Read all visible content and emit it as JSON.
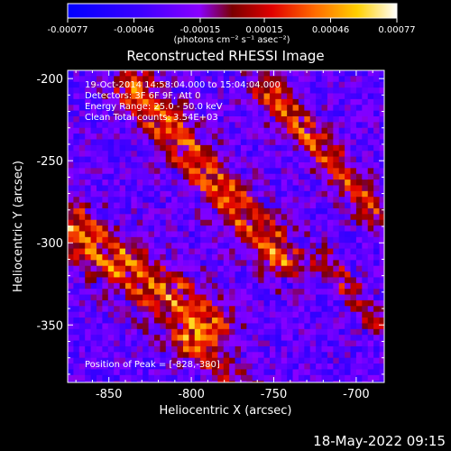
{
  "footer": {
    "timestamp": "18-May-2022 09:15"
  },
  "colors": {
    "background": "#000000",
    "text": "#ffffff",
    "colormap": [
      "#0000ff",
      "#3c00ff",
      "#7a00ff",
      "#9a00ff",
      "#b20000",
      "#ff3300",
      "#ff7a00",
      "#ffc000",
      "#fff200",
      "#ffffff"
    ]
  },
  "chart_data": {
    "type": "heatmap",
    "title": "Reconstructed RHESSI Image",
    "xlabel": "Heliocentric X (arcsec)",
    "ylabel": "Heliocentric Y (arcsec)",
    "xlim": [
      -875,
      -683
    ],
    "ylim": [
      -385,
      -195
    ],
    "x_ticks": [
      -850,
      -800,
      -750,
      -700
    ],
    "x_tick_labels": [
      "-850",
      "-800",
      "-750",
      "-700"
    ],
    "y_ticks": [
      -200,
      -250,
      -300,
      -350
    ],
    "y_tick_labels": [
      "-200",
      "-250",
      "-300",
      "-350"
    ],
    "colorbar": {
      "range": [
        -0.00077,
        0.00077
      ],
      "ticks": [
        -0.00077,
        -0.00046,
        -0.00015,
        0.00015,
        0.00046,
        0.00077
      ],
      "tick_labels": [
        "-0.00077",
        "-0.00046",
        "-0.00015",
        "0.00015",
        "0.00046",
        "0.00077"
      ],
      "unit_label": "(photons cm⁻² s⁻¹ asec⁻²)"
    },
    "annotations": [
      "19-Oct-2014 14:58:04.000 to 15:04:04.000",
      "Detectors: 3F 6F 9F, Att 0",
      "Energy Range: 25.0 - 50.0 keV",
      "Clean     Total counts: 3.54E+03"
    ],
    "peak_label": "Position of Peak = [-828,-380]",
    "bands": [
      {
        "x1": -875,
        "y1": -290,
        "x2": -790,
        "y2": -350,
        "width": 24,
        "peak": 0.00077
      },
      {
        "x1": -835,
        "y1": -205,
        "x2": -745,
        "y2": -310,
        "width": 20,
        "peak": 0.00072
      },
      {
        "x1": -755,
        "y1": -205,
        "x2": -690,
        "y2": -280,
        "width": 16,
        "peak": 0.00066
      },
      {
        "x1": -805,
        "y1": -360,
        "x2": -760,
        "y2": -395,
        "width": 14,
        "peak": 0.0005
      },
      {
        "x1": -720,
        "y1": -310,
        "x2": -685,
        "y2": -350,
        "width": 12,
        "peak": 0.00045
      }
    ]
  }
}
